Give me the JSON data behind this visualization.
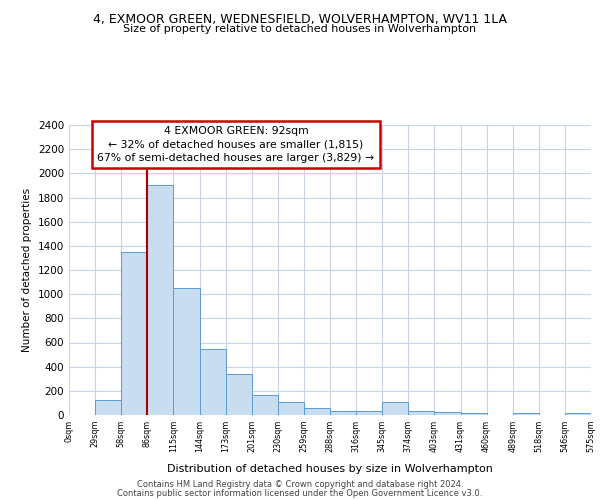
{
  "title": "4, EXMOOR GREEN, WEDNESFIELD, WOLVERHAMPTON, WV11 1LA",
  "subtitle": "Size of property relative to detached houses in Wolverhampton",
  "xlabel": "Distribution of detached houses by size in Wolverhampton",
  "ylabel": "Number of detached properties",
  "bin_labels": [
    "0sqm",
    "29sqm",
    "58sqm",
    "86sqm",
    "115sqm",
    "144sqm",
    "173sqm",
    "201sqm",
    "230sqm",
    "259sqm",
    "288sqm",
    "316sqm",
    "345sqm",
    "374sqm",
    "403sqm",
    "431sqm",
    "460sqm",
    "489sqm",
    "518sqm",
    "546sqm",
    "575sqm"
  ],
  "bar_heights": [
    0,
    125,
    1350,
    1900,
    1050,
    550,
    340,
    165,
    105,
    60,
    30,
    30,
    105,
    30,
    25,
    20,
    0,
    20,
    0,
    20
  ],
  "bar_color": "#c9ddf0",
  "bar_edge_color": "#5b9bd5",
  "vline_color": "#aa0000",
  "vline_x": 3,
  "annotation_line1": "4 EXMOOR GREEN: 92sqm",
  "annotation_line2": "← 32% of detached houses are smaller (1,815)",
  "annotation_line3": "67% of semi-detached houses are larger (3,829) →",
  "annotation_box_facecolor": "#ffffff",
  "annotation_box_edgecolor": "#cc0000",
  "ylim": [
    0,
    2400
  ],
  "yticks": [
    0,
    200,
    400,
    600,
    800,
    1000,
    1200,
    1400,
    1600,
    1800,
    2000,
    2200,
    2400
  ],
  "bg_color": "#ffffff",
  "grid_color": "#c8d4e3",
  "footer1": "Contains HM Land Registry data © Crown copyright and database right 2024.",
  "footer2": "Contains public sector information licensed under the Open Government Licence v3.0."
}
